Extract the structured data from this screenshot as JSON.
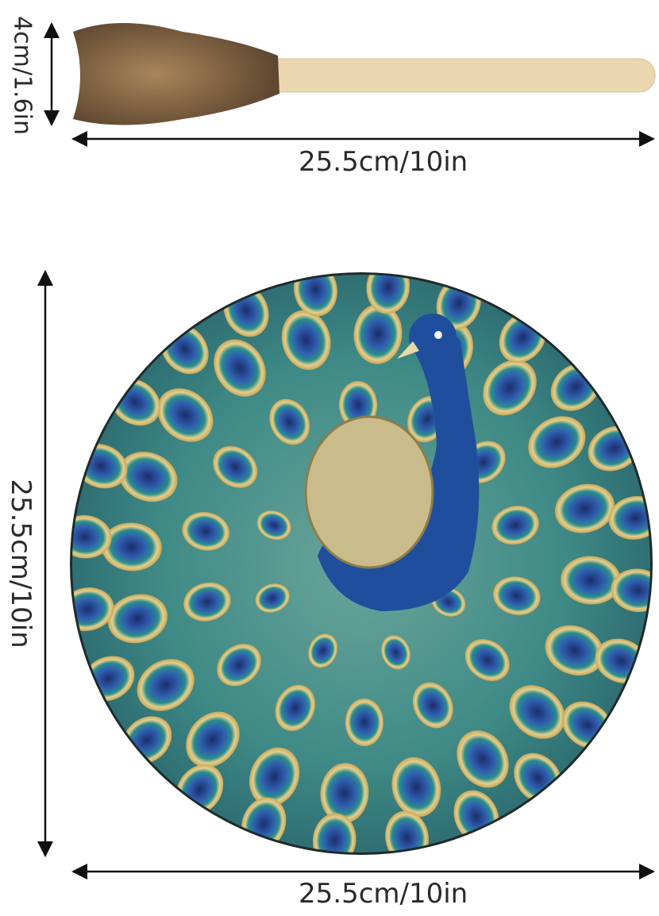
{
  "beater": {
    "height_label": "4cm/1.6in",
    "length_label": "25.5cm/10in",
    "stick_color": "#ead7b0",
    "fur_color": "#8a6a45"
  },
  "drum": {
    "height_label": "25.5cm/10in",
    "width_label": "25.5cm/10in",
    "design": "peacock",
    "colors": {
      "teal": "#3f8a86",
      "blue": "#1f4f9c",
      "gold": "#d9c27a"
    }
  }
}
